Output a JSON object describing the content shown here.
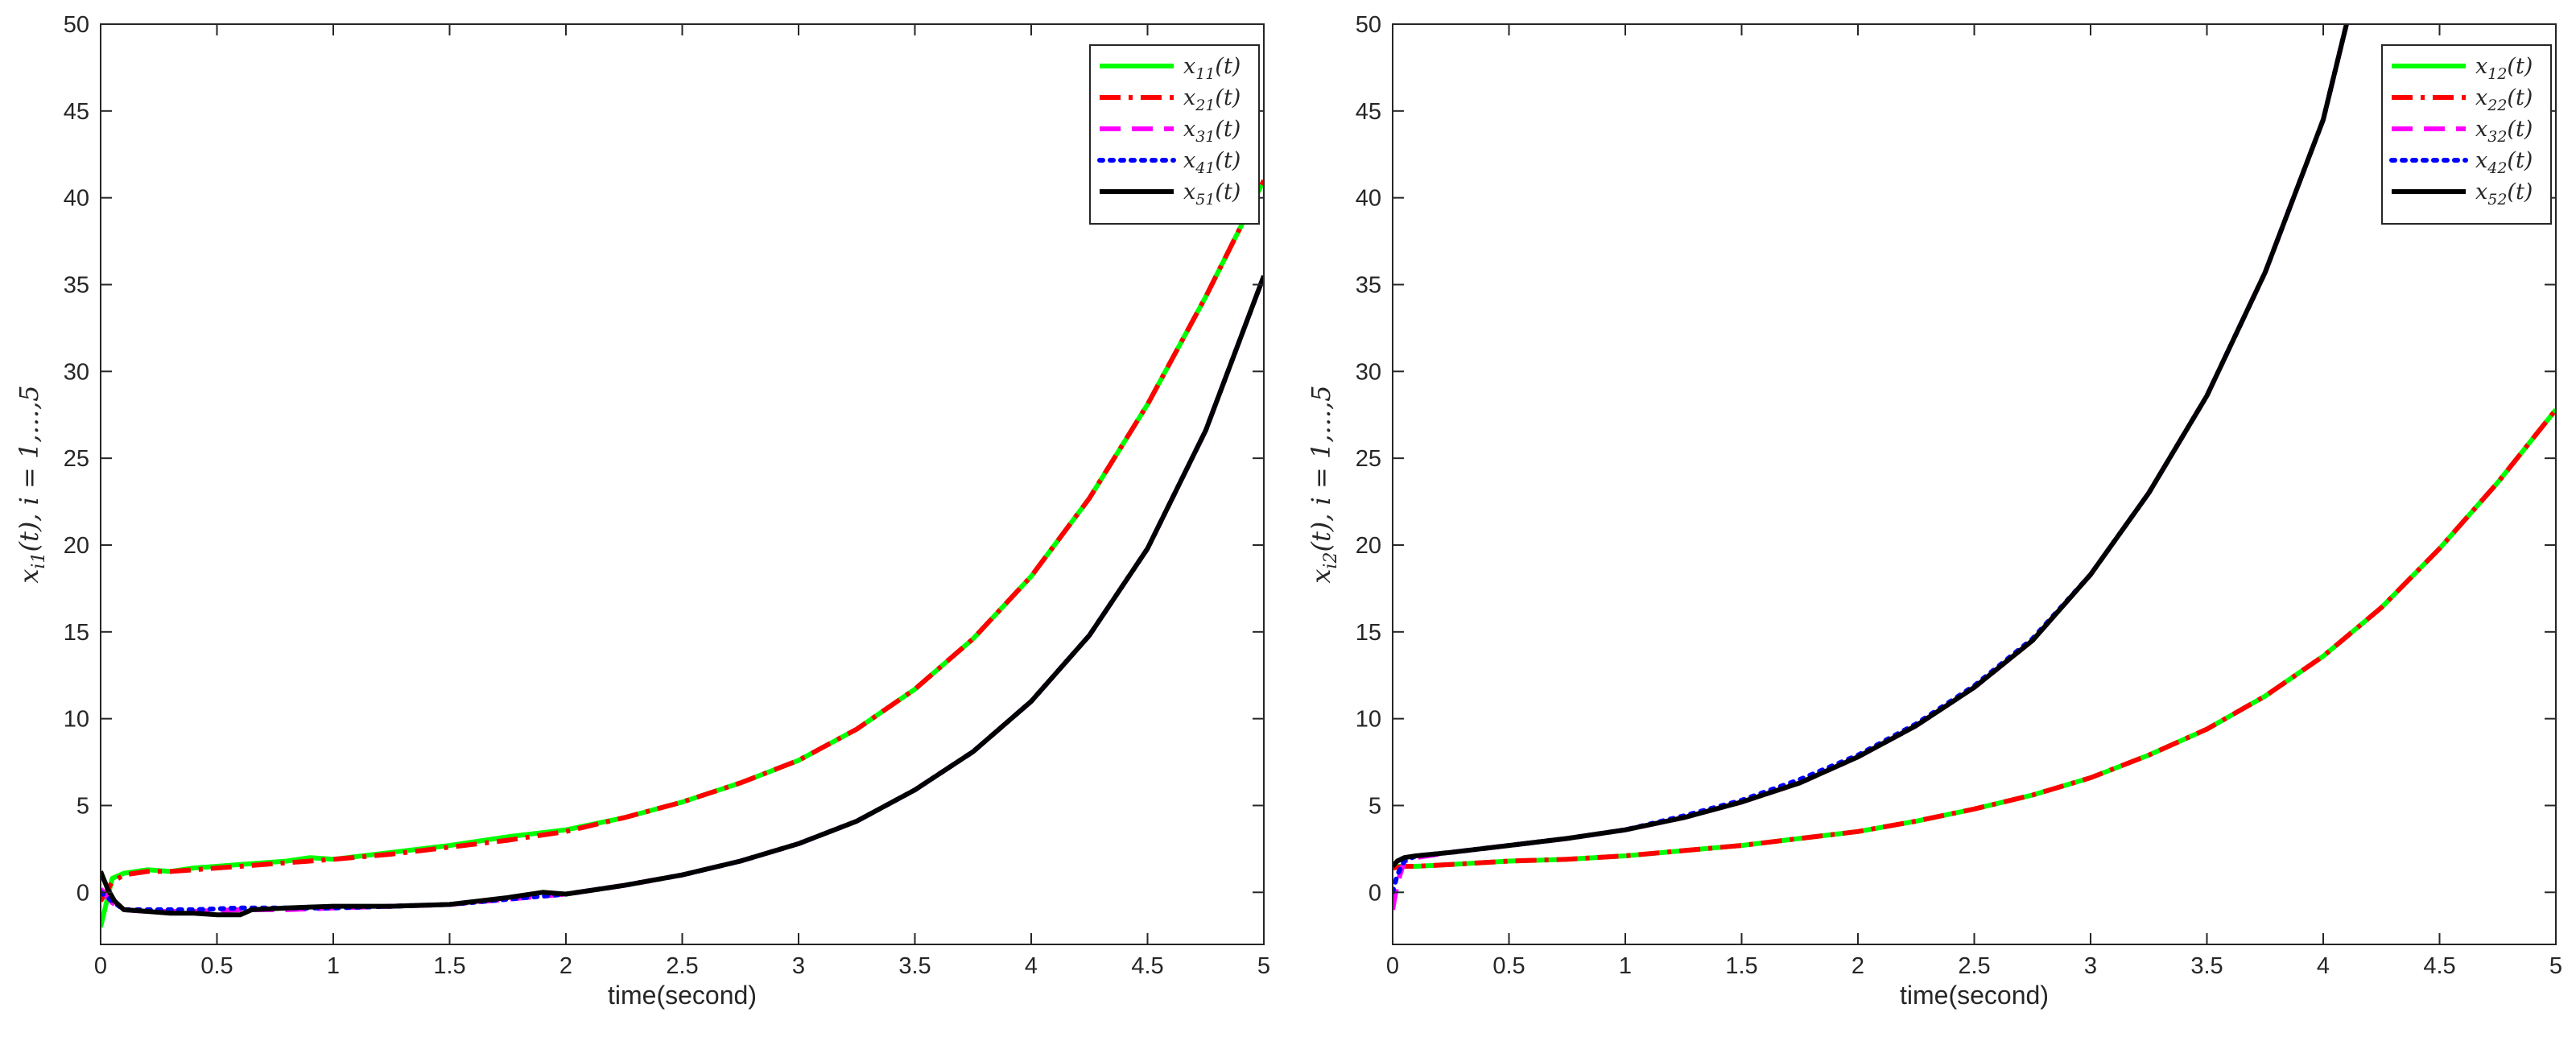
{
  "chart_data": [
    {
      "type": "line",
      "xlabel": "time(second)",
      "ylabel": "x_i1(t), i = 1,...,5",
      "xlim": [
        0,
        5
      ],
      "ylim": [
        -3,
        50
      ],
      "xticks": [
        "0",
        "0.5",
        "1",
        "1.5",
        "2",
        "2.5",
        "3",
        "3.5",
        "4",
        "4.5",
        "5"
      ],
      "yticks": [
        "0",
        "5",
        "10",
        "15",
        "20",
        "25",
        "30",
        "35",
        "40",
        "45",
        "50"
      ],
      "legend_position": "top-right",
      "grid": false,
      "series": [
        {
          "name": "x11(t)",
          "color": "#00ff00",
          "style": "solid",
          "x": [
            0,
            0.05,
            0.1,
            0.2,
            0.3,
            0.4,
            0.5,
            0.6,
            0.7,
            0.8,
            0.9,
            1.0,
            1.25,
            1.5,
            1.75,
            2.0,
            2.25,
            2.5,
            2.75,
            3.0,
            3.25,
            3.5,
            3.75,
            4.0,
            4.25,
            4.5,
            4.75,
            5.0
          ],
          "y": [
            -2.0,
            0.8,
            1.1,
            1.3,
            1.2,
            1.4,
            1.5,
            1.6,
            1.7,
            1.8,
            2.0,
            1.9,
            2.3,
            2.7,
            3.2,
            3.6,
            4.3,
            5.2,
            6.3,
            7.6,
            9.4,
            11.7,
            14.6,
            18.2,
            22.7,
            28.1,
            34.3,
            41.0
          ]
        },
        {
          "name": "x21(t)",
          "color": "#ff0000",
          "style": "dashdot",
          "x": [
            0,
            0.05,
            0.1,
            0.2,
            0.3,
            0.4,
            0.5,
            0.6,
            0.7,
            0.8,
            0.9,
            1.0,
            1.25,
            1.5,
            1.75,
            2.0,
            2.25,
            2.5,
            2.75,
            3.0,
            3.25,
            3.5,
            3.75,
            4.0,
            4.25,
            4.5,
            4.75,
            5.0
          ],
          "y": [
            -0.5,
            0.6,
            1.0,
            1.2,
            1.2,
            1.3,
            1.4,
            1.5,
            1.6,
            1.7,
            1.8,
            1.9,
            2.2,
            2.6,
            3.0,
            3.5,
            4.3,
            5.2,
            6.3,
            7.6,
            9.4,
            11.7,
            14.6,
            18.2,
            22.7,
            28.1,
            34.3,
            41.0
          ]
        },
        {
          "name": "x31(t)",
          "color": "#ff00ff",
          "style": "dashed",
          "x": [
            0,
            0.05,
            0.1,
            0.2,
            0.4,
            0.6,
            0.8,
            1.0,
            1.25,
            1.5,
            1.75,
            2.0,
            2.25,
            2.5,
            2.75,
            3.0,
            3.25,
            3.5,
            3.75,
            4.0,
            4.25,
            4.5,
            4.75,
            5.0
          ],
          "y": [
            0.2,
            -0.6,
            -1.0,
            -1.1,
            -1.1,
            -1.0,
            -1.0,
            -0.9,
            -0.8,
            -0.7,
            -0.4,
            -0.1,
            0.4,
            1.0,
            1.8,
            2.8,
            4.1,
            5.9,
            8.1,
            11.0,
            14.8,
            19.8,
            26.6,
            35.5
          ]
        },
        {
          "name": "x41(t)",
          "color": "#0000ff",
          "style": "dotted",
          "x": [
            0,
            0.05,
            0.1,
            0.2,
            0.4,
            0.6,
            0.8,
            1.0,
            1.25,
            1.5,
            1.75,
            2.0,
            2.25,
            2.5,
            2.75,
            3.0,
            3.25,
            3.5,
            3.75,
            4.0,
            4.25,
            4.5,
            4.75,
            5.0
          ],
          "y": [
            0.0,
            -0.5,
            -1.0,
            -1.0,
            -1.0,
            -0.9,
            -0.9,
            -0.9,
            -0.8,
            -0.7,
            -0.4,
            -0.1,
            0.4,
            1.0,
            1.8,
            2.8,
            4.1,
            5.9,
            8.1,
            11.0,
            14.8,
            19.8,
            26.6,
            35.5
          ]
        },
        {
          "name": "x51(t)",
          "color": "#000000",
          "style": "solid",
          "x": [
            0,
            0.03,
            0.06,
            0.1,
            0.2,
            0.3,
            0.4,
            0.5,
            0.6,
            0.65,
            0.8,
            1.0,
            1.25,
            1.5,
            1.75,
            1.9,
            2.0,
            2.25,
            2.5,
            2.75,
            3.0,
            3.25,
            3.5,
            3.75,
            4.0,
            4.25,
            4.5,
            4.75,
            5.0
          ],
          "y": [
            1.2,
            0.2,
            -0.5,
            -1.0,
            -1.1,
            -1.2,
            -1.2,
            -1.3,
            -1.3,
            -1.0,
            -0.9,
            -0.8,
            -0.8,
            -0.7,
            -0.3,
            0.0,
            -0.1,
            0.4,
            1.0,
            1.8,
            2.8,
            4.1,
            5.9,
            8.1,
            11.0,
            14.8,
            19.8,
            26.6,
            35.5
          ]
        }
      ]
    },
    {
      "type": "line",
      "xlabel": "time(second)",
      "ylabel": "x_i2(t), i = 1,...,5",
      "xlim": [
        0,
        5
      ],
      "ylim": [
        -3,
        50
      ],
      "xticks": [
        "0",
        "0.5",
        "1",
        "1.5",
        "2",
        "2.5",
        "3",
        "3.5",
        "4",
        "4.5",
        "5"
      ],
      "yticks": [
        "0",
        "5",
        "10",
        "15",
        "20",
        "25",
        "30",
        "35",
        "40",
        "45",
        "50"
      ],
      "legend_position": "top-right",
      "grid": false,
      "series": [
        {
          "name": "x12(t)",
          "color": "#00ff00",
          "style": "solid",
          "x": [
            0,
            0.05,
            0.1,
            0.25,
            0.5,
            0.75,
            1.0,
            1.25,
            1.5,
            1.75,
            2.0,
            2.25,
            2.5,
            2.75,
            3.0,
            3.25,
            3.5,
            3.75,
            4.0,
            4.25,
            4.5,
            4.75,
            5.0
          ],
          "y": [
            1.5,
            1.5,
            1.5,
            1.6,
            1.8,
            1.9,
            2.1,
            2.4,
            2.7,
            3.1,
            3.5,
            4.1,
            4.8,
            5.6,
            6.6,
            7.9,
            9.4,
            11.3,
            13.6,
            16.4,
            19.8,
            23.6,
            27.8
          ]
        },
        {
          "name": "x22(t)",
          "color": "#ff0000",
          "style": "dashdot",
          "x": [
            0,
            0.05,
            0.1,
            0.25,
            0.5,
            0.75,
            1.0,
            1.25,
            1.5,
            1.75,
            2.0,
            2.25,
            2.5,
            2.75,
            3.0,
            3.25,
            3.5,
            3.75,
            4.0,
            4.25,
            4.5,
            4.75,
            5.0
          ],
          "y": [
            1.4,
            1.5,
            1.5,
            1.6,
            1.8,
            1.9,
            2.1,
            2.4,
            2.7,
            3.1,
            3.5,
            4.1,
            4.8,
            5.6,
            6.6,
            7.9,
            9.4,
            11.3,
            13.6,
            16.4,
            19.8,
            23.6,
            27.8
          ]
        },
        {
          "name": "x32(t)",
          "color": "#ff00ff",
          "style": "dashed",
          "x": [
            0,
            0.02,
            0.05,
            0.1,
            0.25,
            0.5,
            0.75,
            1.0,
            1.25,
            1.5,
            1.75,
            2.0,
            2.25,
            2.5,
            2.75,
            3.0,
            3.25,
            3.5,
            3.75,
            4.0,
            4.1
          ],
          "y": [
            -1.0,
            0.5,
            1.8,
            2.0,
            2.3,
            2.7,
            3.1,
            3.6,
            4.3,
            5.2,
            6.3,
            7.8,
            9.6,
            11.8,
            14.5,
            18.3,
            23.0,
            28.6,
            35.7,
            44.5,
            50.0
          ]
        },
        {
          "name": "x42(t)",
          "color": "#0000ff",
          "style": "dotted",
          "x": [
            0,
            0.02,
            0.05,
            0.1,
            0.25,
            0.5,
            0.75,
            1.0,
            1.25,
            1.5,
            1.75,
            2.0,
            2.25,
            2.5,
            2.75,
            3.0,
            3.25,
            3.5,
            3.75,
            4.0,
            4.1
          ],
          "y": [
            0.0,
            1.0,
            1.8,
            2.1,
            2.3,
            2.7,
            3.1,
            3.6,
            4.4,
            5.3,
            6.5,
            7.9,
            9.7,
            11.9,
            14.6,
            18.3,
            23.0,
            28.6,
            35.7,
            44.5,
            50.0
          ]
        },
        {
          "name": "x52(t)",
          "color": "#000000",
          "style": "solid",
          "x": [
            0,
            0.02,
            0.05,
            0.1,
            0.25,
            0.5,
            0.75,
            1.0,
            1.25,
            1.5,
            1.75,
            2.0,
            2.25,
            2.5,
            2.75,
            3.0,
            3.25,
            3.5,
            3.75,
            4.0,
            4.1
          ],
          "y": [
            1.5,
            1.8,
            2.0,
            2.1,
            2.3,
            2.7,
            3.1,
            3.6,
            4.3,
            5.2,
            6.3,
            7.8,
            9.6,
            11.8,
            14.5,
            18.3,
            23.0,
            28.6,
            35.7,
            44.5,
            50.0
          ]
        }
      ]
    }
  ]
}
